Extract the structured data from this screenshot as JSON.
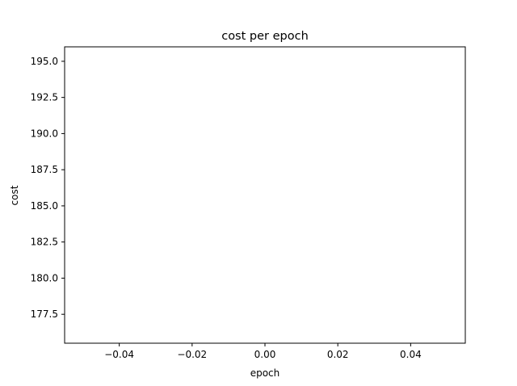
{
  "chart_data": {
    "type": "line",
    "title": "cost per epoch",
    "xlabel": "epoch",
    "ylabel": "cost",
    "xlim": [
      -0.055,
      0.055
    ],
    "ylim": [
      175.5,
      196.0
    ],
    "x_ticks": [
      -0.04,
      -0.02,
      0.0,
      0.02,
      0.04
    ],
    "x_tick_labels": [
      "−0.04",
      "−0.02",
      "0.00",
      "0.02",
      "0.04"
    ],
    "y_ticks": [
      177.5,
      180.0,
      182.5,
      185.0,
      187.5,
      190.0,
      192.5,
      195.0
    ],
    "y_tick_labels": [
      "177.5",
      "180.0",
      "182.5",
      "185.0",
      "187.5",
      "190.0",
      "192.5",
      "195.0"
    ],
    "grid": false,
    "series": [
      {
        "x": [],
        "y": []
      }
    ]
  }
}
